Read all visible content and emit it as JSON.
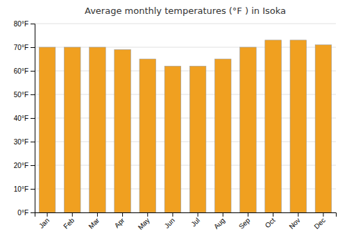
{
  "chart_data": {
    "type": "bar",
    "title": "Average monthly temperatures (°F ) in Isoka",
    "categories": [
      "Jan",
      "Feb",
      "Mar",
      "Apr",
      "May",
      "Jun",
      "Jul",
      "Aug",
      "Sep",
      "Oct",
      "Nov",
      "Dec"
    ],
    "values": [
      70,
      70,
      70,
      69,
      65,
      62,
      62,
      65,
      70,
      73,
      73,
      71
    ],
    "color": "#F0A020",
    "ylim": [
      0,
      80
    ],
    "yticks": [
      {
        "value": 0,
        "label": "0°F"
      },
      {
        "value": 10,
        "label": "10°F"
      },
      {
        "value": 20,
        "label": "20°F"
      },
      {
        "value": 30,
        "label": "30°F"
      },
      {
        "value": 40,
        "label": "40°F"
      },
      {
        "value": 50,
        "label": "50°F"
      },
      {
        "value": 60,
        "label": "60°F"
      },
      {
        "value": 70,
        "label": "70°F"
      },
      {
        "value": 80,
        "label": "80°F"
      }
    ],
    "grid": true
  }
}
